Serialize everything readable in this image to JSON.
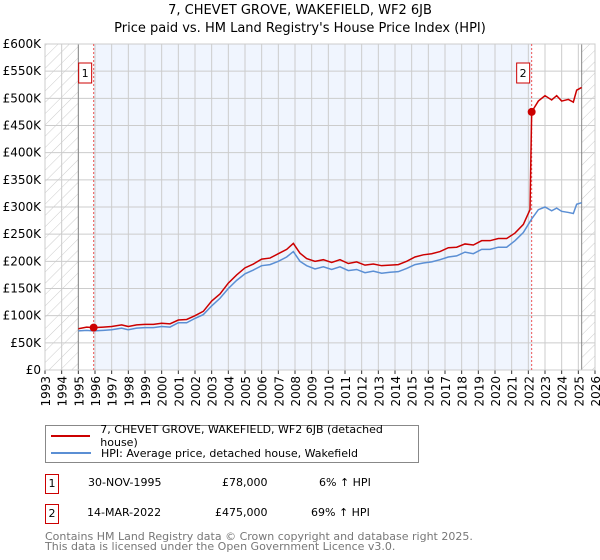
{
  "chart_data": {
    "type": "line",
    "title": "7, CHEVET GROVE, WAKEFIELD, WF2 6JB",
    "subtitle": "Price paid vs. HM Land Registry's House Price Index (HPI)",
    "xlim": [
      1993,
      2026
    ],
    "ylim": [
      0,
      600000
    ],
    "x_ticks": [
      "1993",
      "1994",
      "1995",
      "1996",
      "1997",
      "1998",
      "1999",
      "2000",
      "2001",
      "2002",
      "2003",
      "2004",
      "2005",
      "2006",
      "2007",
      "2008",
      "2009",
      "2010",
      "2011",
      "2012",
      "2013",
      "2014",
      "2015",
      "2016",
      "2017",
      "2018",
      "2019",
      "2020",
      "2021",
      "2022",
      "2023",
      "2024",
      "2025",
      "2026"
    ],
    "y_ticks": [
      {
        "v": 0,
        "label": "£0"
      },
      {
        "v": 50000,
        "label": "£50K"
      },
      {
        "v": 100000,
        "label": "£100K"
      },
      {
        "v": 150000,
        "label": "£150K"
      },
      {
        "v": 200000,
        "label": "£200K"
      },
      {
        "v": 250000,
        "label": "£250K"
      },
      {
        "v": 300000,
        "label": "£300K"
      },
      {
        "v": 350000,
        "label": "£350K"
      },
      {
        "v": 400000,
        "label": "£400K"
      },
      {
        "v": 450000,
        "label": "£450K"
      },
      {
        "v": 500000,
        "label": "£500K"
      },
      {
        "v": 550000,
        "label": "£550K"
      },
      {
        "v": 600000,
        "label": "£600K"
      }
    ],
    "grid": true,
    "data_range": [
      1995,
      2025.2
    ],
    "series": [
      {
        "name": "7, CHEVET GROVE, WAKEFIELD, WF2 6JB (detached house)",
        "color": "#cc0000",
        "x": [
          1995,
          1995.5,
          1995.92,
          1996.5,
          1997,
          1997.6,
          1998,
          1998.5,
          1999,
          1999.5,
          2000,
          2000.5,
          2001,
          2001.5,
          2002,
          2002.5,
          2003,
          2003.5,
          2004,
          2004.5,
          2005,
          2005.5,
          2006,
          2006.5,
          2007,
          2007.5,
          2007.9,
          2008.3,
          2008.7,
          2009.2,
          2009.7,
          2010.2,
          2010.7,
          2011.2,
          2011.7,
          2012.2,
          2012.7,
          2013.2,
          2013.7,
          2014.2,
          2014.7,
          2015.2,
          2015.7,
          2016.2,
          2016.7,
          2017.2,
          2017.7,
          2018.2,
          2018.7,
          2019.2,
          2019.7,
          2020.2,
          2020.7,
          2021.2,
          2021.7,
          2022.1,
          2022.2,
          2022.6,
          2023,
          2023.4,
          2023.7,
          2024,
          2024.4,
          2024.7,
          2024.9,
          2025.2
        ],
        "y": [
          76000,
          79000,
          78000,
          79000,
          80000,
          83000,
          80000,
          83000,
          84000,
          84000,
          86000,
          85000,
          92000,
          93000,
          100000,
          108000,
          127000,
          140000,
          160000,
          175000,
          188000,
          195000,
          204000,
          206000,
          214000,
          222000,
          233000,
          215000,
          205000,
          200000,
          203000,
          198000,
          203000,
          196000,
          199000,
          193000,
          195000,
          192000,
          193000,
          194000,
          200000,
          208000,
          212000,
          214000,
          218000,
          225000,
          226000,
          232000,
          230000,
          238000,
          238000,
          242000,
          242000,
          252000,
          268000,
          295000,
          475000,
          495000,
          505000,
          497000,
          505000,
          495000,
          498000,
          493000,
          515000,
          520000
        ]
      },
      {
        "name": "HPI: Average price, detached house, Wakefield",
        "color": "#5b8fd4",
        "x": [
          1995,
          1995.5,
          1995.92,
          1996.5,
          1997,
          1997.6,
          1998,
          1998.5,
          1999,
          1999.5,
          2000,
          2000.5,
          2001,
          2001.5,
          2002,
          2002.5,
          2003,
          2003.5,
          2004,
          2004.5,
          2005,
          2005.5,
          2006,
          2006.5,
          2007,
          2007.5,
          2007.9,
          2008.3,
          2008.7,
          2009.2,
          2009.7,
          2010.2,
          2010.7,
          2011.2,
          2011.7,
          2012.2,
          2012.7,
          2013.2,
          2013.7,
          2014.2,
          2014.7,
          2015.2,
          2015.7,
          2016.2,
          2016.7,
          2017.2,
          2017.7,
          2018.2,
          2018.7,
          2019.2,
          2019.7,
          2020.2,
          2020.7,
          2021.2,
          2021.7,
          2022.2,
          2022.6,
          2023,
          2023.4,
          2023.7,
          2024,
          2024.4,
          2024.7,
          2024.9,
          2025.2
        ],
        "y": [
          72000,
          73000,
          72000,
          73000,
          74000,
          77000,
          74000,
          77000,
          78000,
          78000,
          80000,
          79000,
          87000,
          87000,
          95000,
          102000,
          118000,
          132000,
          150000,
          165000,
          177000,
          184000,
          192000,
          194000,
          200000,
          208000,
          218000,
          200000,
          192000,
          186000,
          190000,
          185000,
          190000,
          183000,
          185000,
          179000,
          182000,
          178000,
          180000,
          181000,
          187000,
          194000,
          197000,
          199000,
          203000,
          208000,
          210000,
          217000,
          214000,
          222000,
          222000,
          226000,
          226000,
          238000,
          253000,
          278000,
          295000,
          300000,
          293000,
          298000,
          292000,
          290000,
          288000,
          305000,
          308000
        ]
      }
    ],
    "sales": [
      {
        "label": "1",
        "x": 1995.92,
        "y": 78000
      },
      {
        "label": "2",
        "x": 2022.2,
        "y": 475000
      }
    ]
  },
  "legend": {
    "items": [
      "7, CHEVET GROVE, WAKEFIELD, WF2 6JB (detached house)",
      "HPI: Average price, detached house, Wakefield"
    ]
  },
  "table": [
    {
      "num": "1",
      "date": "30-NOV-1995",
      "price": "£78,000",
      "hpi": "6% ↑ HPI"
    },
    {
      "num": "2",
      "date": "14-MAR-2022",
      "price": "£475,000",
      "hpi": "69% ↑ HPI"
    }
  ],
  "footer": [
    "Contains HM Land Registry data © Crown copyright and database right 2025.",
    "This data is licensed under the Open Government Licence v3.0."
  ]
}
